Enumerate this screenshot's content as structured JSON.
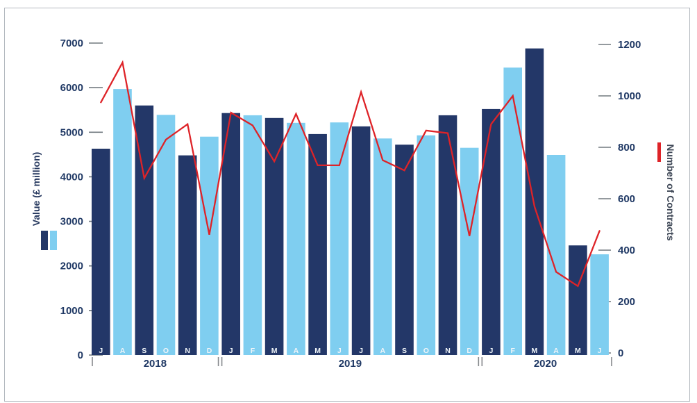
{
  "chart_data": {
    "type": "bar",
    "subtype": "combo-bar-line-dual-axis",
    "title": "",
    "categories": [
      "J",
      "A",
      "S",
      "O",
      "N",
      "D",
      "J",
      "F",
      "M",
      "A",
      "M",
      "J",
      "J",
      "A",
      "S",
      "O",
      "N",
      "D",
      "J",
      "F",
      "M",
      "A",
      "M",
      "J"
    ],
    "year_groups": [
      {
        "label": "2018",
        "months": 6
      },
      {
        "label": "2019",
        "months": 12
      },
      {
        "label": "2020",
        "months": 6
      }
    ],
    "series": [
      {
        "name": "Value (£ million)",
        "type": "bar",
        "axis": "left",
        "values": [
          4630,
          5970,
          5600,
          5390,
          4480,
          4900,
          5430,
          5380,
          5320,
          5210,
          4960,
          5220,
          5130,
          4860,
          4720,
          4930,
          5380,
          4650,
          5520,
          6450,
          6880,
          4490,
          2460,
          2260
        ]
      },
      {
        "name": "Number of Contracts",
        "type": "line",
        "axis": "right",
        "values": [
          975,
          1130,
          680,
          830,
          890,
          460,
          935,
          885,
          745,
          930,
          730,
          730,
          1015,
          750,
          710,
          865,
          855,
          455,
          890,
          1000,
          570,
          315,
          260,
          475
        ]
      }
    ],
    "left_axis": {
      "label": "Value (£ million)",
      "min": 0,
      "max": 7000,
      "step": 1000
    },
    "right_axis": {
      "label": "Number of Contracts",
      "min": 0,
      "max": 1200,
      "step": 200
    },
    "grid": false,
    "legend_position": "outer-sides",
    "colors": {
      "bar_dark": "#233768",
      "bar_light": "#7fcef0",
      "line_red": "#de2328",
      "tick_dash": "#71797f",
      "tick_label": "#1f3864",
      "year_separator": "#85888c",
      "month_letter": "#eff4f8"
    }
  }
}
